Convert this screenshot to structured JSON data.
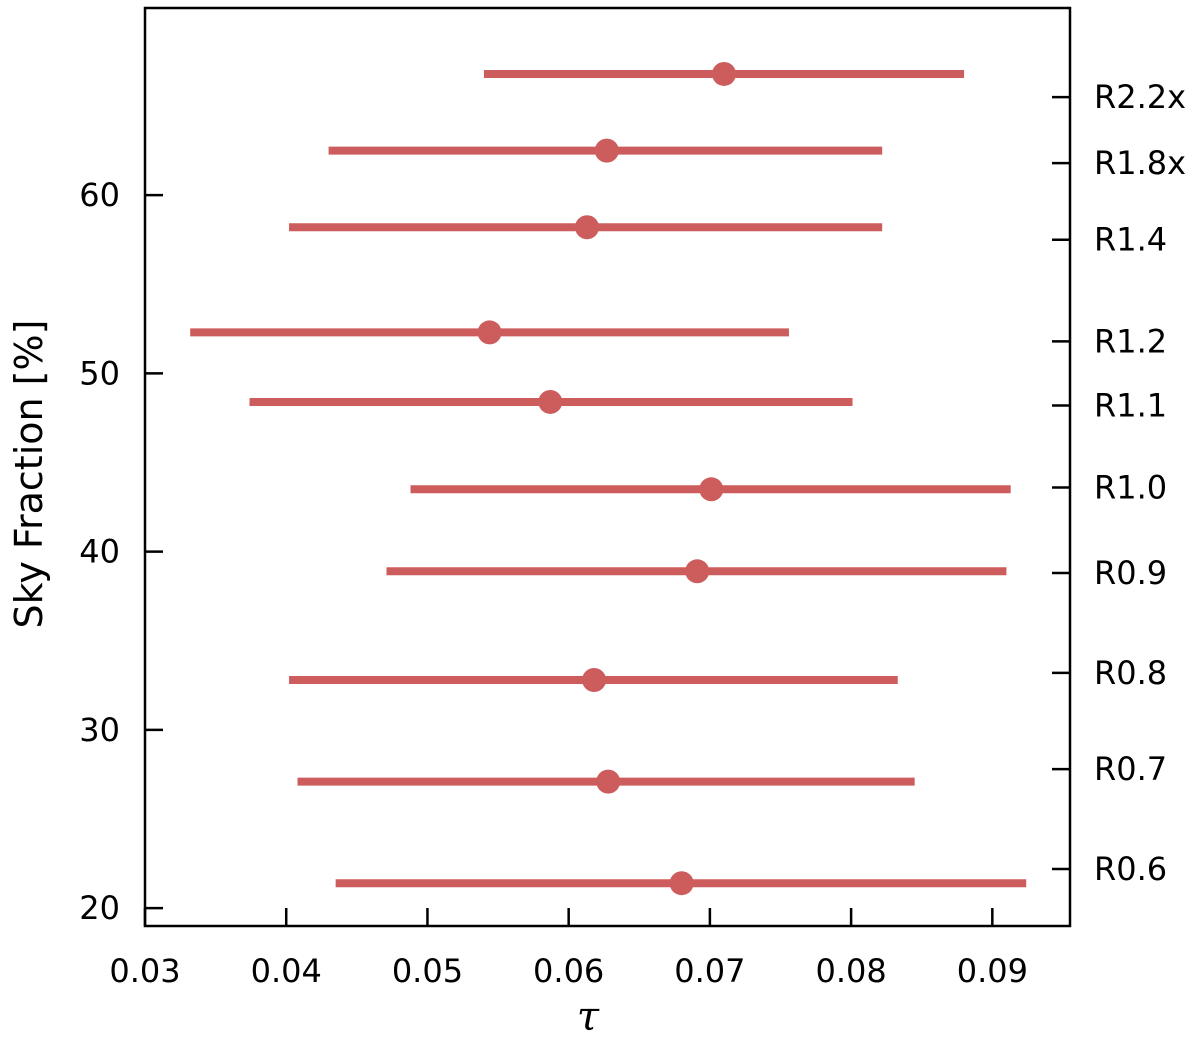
{
  "chart_data": {
    "type": "scatter",
    "subtype": "errorbar",
    "xlabel": "τ",
    "ylabel": "Sky Fraction [%]",
    "xlim": [
      0.03,
      0.0955
    ],
    "ylim": [
      19,
      70.5
    ],
    "xticks": [
      {
        "value": 0.03,
        "label": "0.03"
      },
      {
        "value": 0.04,
        "label": "0.04"
      },
      {
        "value": 0.05,
        "label": "0.05"
      },
      {
        "value": 0.06,
        "label": "0.06"
      },
      {
        "value": 0.07,
        "label": "0.07"
      },
      {
        "value": 0.08,
        "label": "0.08"
      },
      {
        "value": 0.09,
        "label": "0.09"
      }
    ],
    "yticks": [
      {
        "value": 20,
        "label": "20"
      },
      {
        "value": 30,
        "label": "30"
      },
      {
        "value": 40,
        "label": "40"
      },
      {
        "value": 50,
        "label": "50"
      },
      {
        "value": 60,
        "label": "60"
      }
    ],
    "grid": false,
    "legend": "none",
    "color": "#cd5c5c",
    "points": [
      {
        "label": "R2.2x",
        "y": 66.8,
        "label_y": 65.5,
        "x": 0.071,
        "xmin": 0.054,
        "xmax": 0.088
      },
      {
        "label": "R1.8x",
        "y": 62.5,
        "label_y": 61.8,
        "x": 0.0627,
        "xmin": 0.043,
        "xmax": 0.0822
      },
      {
        "label": "R1.4",
        "y": 58.2,
        "label_y": 57.5,
        "x": 0.0613,
        "xmin": 0.0402,
        "xmax": 0.0822
      },
      {
        "label": "R1.2",
        "y": 52.3,
        "label_y": 51.8,
        "x": 0.0544,
        "xmin": 0.0332,
        "xmax": 0.0756
      },
      {
        "label": "R1.1",
        "y": 48.4,
        "label_y": 48.2,
        "x": 0.0587,
        "xmin": 0.0374,
        "xmax": 0.0801
      },
      {
        "label": "R1.0",
        "y": 43.5,
        "label_y": 43.6,
        "x": 0.0701,
        "xmin": 0.0488,
        "xmax": 0.0913
      },
      {
        "label": "R0.9",
        "y": 38.9,
        "label_y": 38.8,
        "x": 0.0691,
        "xmin": 0.0471,
        "xmax": 0.091
      },
      {
        "label": "R0.8",
        "y": 32.8,
        "label_y": 33.2,
        "x": 0.0618,
        "xmin": 0.0402,
        "xmax": 0.0833
      },
      {
        "label": "R0.7",
        "y": 27.1,
        "label_y": 27.8,
        "x": 0.0628,
        "xmin": 0.0408,
        "xmax": 0.0845
      },
      {
        "label": "R0.6",
        "y": 21.4,
        "label_y": 22.2,
        "x": 0.068,
        "xmin": 0.0435,
        "xmax": 0.0924
      }
    ]
  }
}
